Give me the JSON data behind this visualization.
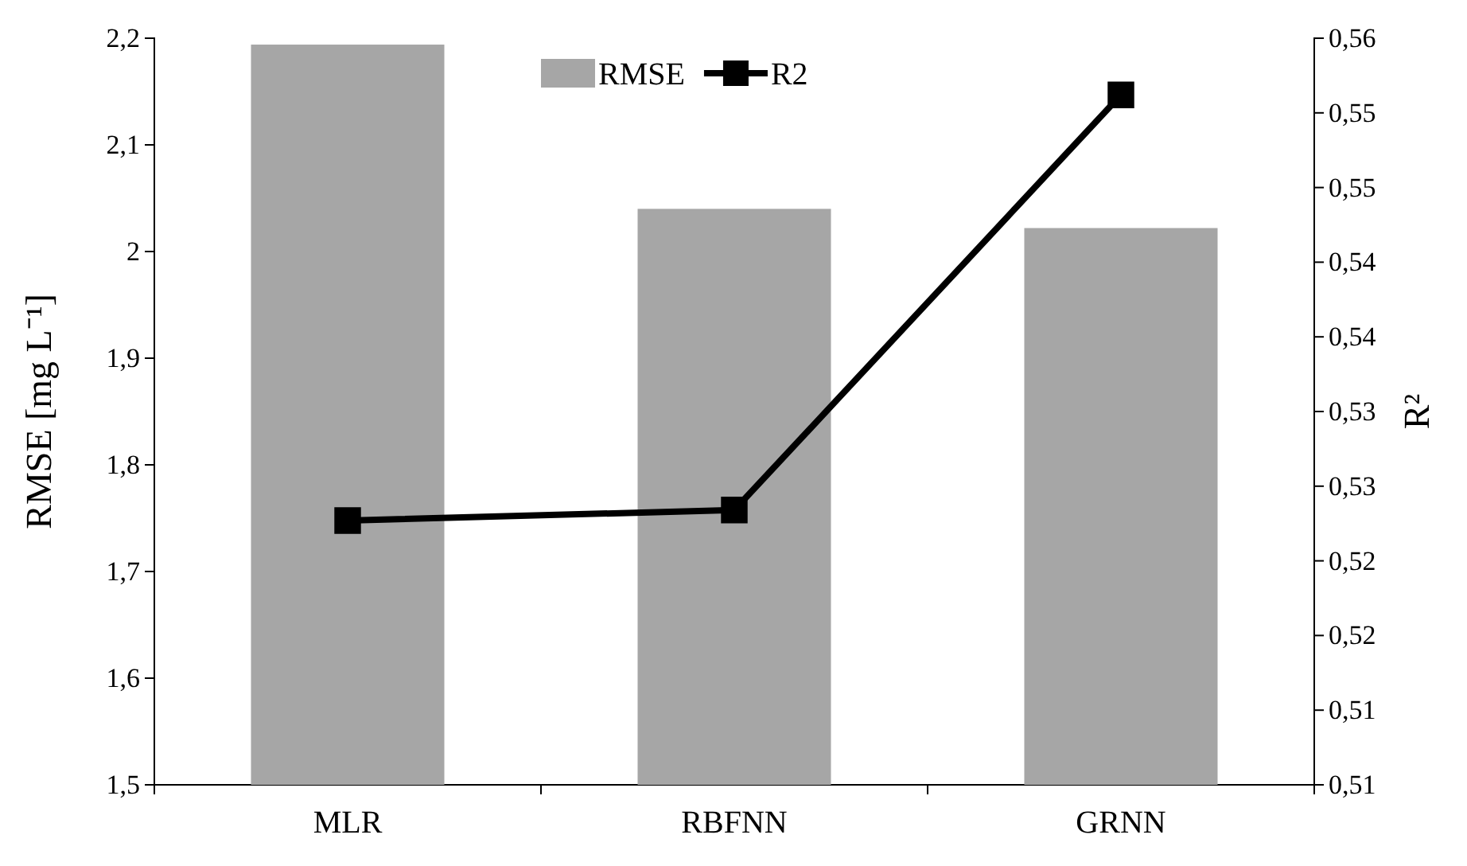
{
  "chart_data": {
    "type": "bar",
    "categories": [
      "MLR",
      "RBFNN",
      "GRNN"
    ],
    "series": [
      {
        "name": "RMSE",
        "color": "#a6a6a6",
        "values": [
          2.194,
          2.04,
          2.022
        ]
      },
      {
        "name": "R2",
        "type": "line",
        "axis": "y2",
        "color": "#000000",
        "values": [
          0.5277,
          0.5284,
          0.5562
        ],
        "marker": "square"
      }
    ],
    "ylabel": "RMSE [mg L⁻¹]",
    "y2label": "R²",
    "ylim": [
      1.5,
      2.2
    ],
    "yticks": [
      {
        "value": 1.5,
        "label": "1,5"
      },
      {
        "value": 1.6,
        "label": "1,6"
      },
      {
        "value": 1.7,
        "label": "1,7"
      },
      {
        "value": 1.8,
        "label": "1,8"
      },
      {
        "value": 1.9,
        "label": "1,9"
      },
      {
        "value": 2.0,
        "label": "2"
      },
      {
        "value": 2.1,
        "label": "2,1"
      },
      {
        "value": 2.2,
        "label": "2,2"
      }
    ],
    "y2lim": [
      0.51,
      0.56
    ],
    "y2ticks": [
      {
        "value": 0.51,
        "label": "0,51"
      },
      {
        "value": 0.515,
        "label": "0,51"
      },
      {
        "value": 0.52,
        "label": "0,52"
      },
      {
        "value": 0.525,
        "label": "0,52"
      },
      {
        "value": 0.53,
        "label": "0,53"
      },
      {
        "value": 0.535,
        "label": "0,53"
      },
      {
        "value": 0.54,
        "label": "0,54"
      },
      {
        "value": 0.545,
        "label": "0,54"
      },
      {
        "value": 0.55,
        "label": "0,55"
      },
      {
        "value": 0.555,
        "label": "0,55"
      },
      {
        "value": 0.56,
        "label": "0,56"
      }
    ],
    "legend": "top",
    "grid": false,
    "line_style": "solid"
  }
}
